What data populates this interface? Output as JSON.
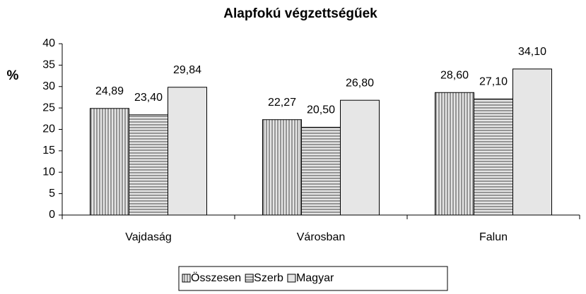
{
  "chart_data": {
    "type": "bar",
    "title": "Alapfokú végzettségűek",
    "ylabel": "%",
    "categories": [
      "Vajdaság",
      "Városban",
      "Falun"
    ],
    "series": [
      {
        "name": "Összesen",
        "color": "#e6e6e6",
        "pattern": "vertical",
        "values": [
          24.89,
          22.27,
          28.6
        ],
        "value_labels": [
          "24,89",
          "22,27",
          "28,60"
        ]
      },
      {
        "name": "Szerb",
        "color": "#e6e6e6",
        "pattern": "horizontal",
        "values": [
          23.4,
          20.5,
          27.1
        ],
        "value_labels": [
          "23,40",
          "20,50",
          "27,10"
        ]
      },
      {
        "name": "Magyar",
        "color": "#e6e6e6",
        "pattern": "none",
        "values": [
          29.84,
          26.8,
          34.1
        ],
        "value_labels": [
          "29,84",
          "26,80",
          "34,10"
        ]
      }
    ],
    "ylim": [
      0,
      40
    ],
    "yticks": [
      0,
      5,
      10,
      15,
      20,
      25,
      30,
      35,
      40
    ],
    "grid": false,
    "legend": "bottom"
  }
}
